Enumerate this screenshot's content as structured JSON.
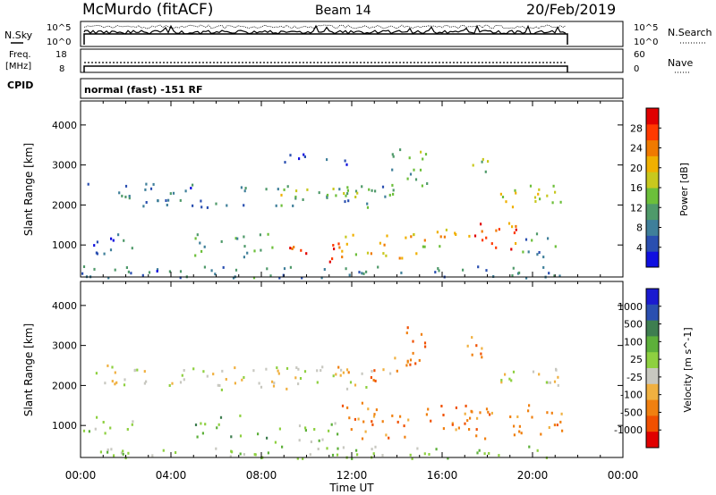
{
  "header": {
    "station": "McMurdo (fitACF)",
    "beam": "Beam 14",
    "date": "20/Feb/2019"
  },
  "strip_nsky": {
    "label": "N.Sky",
    "y_ticks": [
      "10^5",
      "10^0"
    ],
    "right_ticks": [
      "10^5",
      "10^0"
    ],
    "right_label": "N.Search"
  },
  "strip_freq": {
    "label_line1": "Freq.",
    "label_line2": "[MHz]",
    "left_ticks": [
      "18",
      "8"
    ],
    "right_ticks": [
      "60",
      "0"
    ],
    "right_label": "Nave"
  },
  "cpid": {
    "label": "CPID",
    "text": "normal (fast) -151 RF"
  },
  "colors": {
    "power_scale": [
      "#1010e0",
      "#2a4fb0",
      "#3f7f9a",
      "#4f9a6a",
      "#6cbf3a",
      "#c8c81e",
      "#f0b000",
      "#f07a00",
      "#ff3a00",
      "#e00000"
    ],
    "velocity_scale": [
      "#1a1ad0",
      "#2a4fb0",
      "#3e7e50",
      "#5db03a",
      "#8ed040",
      "#c8c8c0",
      "#f0b040",
      "#f08010",
      "#f05000",
      "#e00000"
    ]
  },
  "chart_data": [
    {
      "type": "heatmap",
      "name": "power",
      "ylabel": "Slant Range [km]",
      "ylim": [
        200,
        4600
      ],
      "y_ticks": [
        1000,
        2000,
        3000,
        4000
      ],
      "colorbar_label": "Power [dB]",
      "colorbar_ticks": [
        4,
        8,
        12,
        16,
        20,
        24,
        28
      ],
      "colorbar_range": [
        0,
        32
      ],
      "scatter_bands": [
        {
          "t0": 0.3,
          "t1": 5.3,
          "r0": 2000,
          "r1": 2600,
          "value": 8
        },
        {
          "t0": 5.3,
          "t1": 13.7,
          "r0": 1900,
          "r1": 2500,
          "value": 10
        },
        {
          "t0": 8.5,
          "t1": 13.0,
          "r0": 2200,
          "r1": 2500,
          "value": 16
        },
        {
          "t0": 13.7,
          "t1": 15.3,
          "r0": 2300,
          "r1": 3600,
          "value": 12
        },
        {
          "t0": 18.5,
          "t1": 21.3,
          "r0": 1900,
          "r1": 2600,
          "value": 18
        },
        {
          "t0": 0.0,
          "t1": 2.3,
          "r0": 800,
          "r1": 1300,
          "value": 6
        },
        {
          "t0": 5.0,
          "t1": 8.5,
          "r0": 700,
          "r1": 1300,
          "value": 12
        },
        {
          "t0": 8.5,
          "t1": 11.5,
          "r0": 600,
          "r1": 1100,
          "value": 28
        },
        {
          "t0": 11.5,
          "t1": 16.3,
          "r0": 700,
          "r1": 1500,
          "value": 20
        },
        {
          "t0": 16.3,
          "t1": 19.5,
          "r0": 900,
          "r1": 1600,
          "value": 26
        },
        {
          "t0": 19.5,
          "t1": 21.3,
          "r0": 700,
          "r1": 1400,
          "value": 10
        },
        {
          "t0": 0.0,
          "t1": 21.3,
          "r0": 200,
          "r1": 500,
          "value": 8
        },
        {
          "t0": 9.0,
          "t1": 12.0,
          "r0": 3000,
          "r1": 3300,
          "value": 6
        },
        {
          "t0": 17.0,
          "t1": 18.0,
          "r0": 2700,
          "r1": 3200,
          "value": 14
        }
      ]
    },
    {
      "type": "heatmap",
      "name": "velocity",
      "ylabel": "Slant Range [km]",
      "xlabel": "Time UT",
      "ylim": [
        200,
        4600
      ],
      "y_ticks": [
        1000,
        2000,
        3000,
        4000
      ],
      "x_ticks": [
        "00:00",
        "04:00",
        "08:00",
        "12:00",
        "16:00",
        "20:00",
        "00:00"
      ],
      "xlim_hours": [
        0,
        24
      ],
      "colorbar_label": "Velocity [m s^-1]",
      "colorbar_ticks": [
        "1000",
        "500",
        "100",
        "25",
        "-25",
        "-100",
        "-500",
        "-1000"
      ],
      "scatter_bands": [
        {
          "t0": 0.5,
          "t1": 5.3,
          "r0": 2000,
          "r1": 2600,
          "value": 5
        },
        {
          "t0": 5.3,
          "t1": 13.7,
          "r0": 1900,
          "r1": 2500,
          "value": 5
        },
        {
          "t0": 11.0,
          "t1": 13.5,
          "r0": 2100,
          "r1": 2500,
          "value": 7
        },
        {
          "t0": 13.7,
          "t1": 15.3,
          "r0": 2300,
          "r1": 3600,
          "value": 7
        },
        {
          "t0": 18.5,
          "t1": 21.3,
          "r0": 1900,
          "r1": 2600,
          "value": 5
        },
        {
          "t0": 0.0,
          "t1": 2.3,
          "r0": 800,
          "r1": 1300,
          "value": 4
        },
        {
          "t0": 5.0,
          "t1": 8.3,
          "r0": 700,
          "r1": 1300,
          "value": 3
        },
        {
          "t0": 8.3,
          "t1": 11.5,
          "r0": 600,
          "r1": 1100,
          "value": 4
        },
        {
          "t0": 11.5,
          "t1": 21.3,
          "r0": 700,
          "r1": 1600,
          "value": 7
        },
        {
          "t0": 0.0,
          "t1": 21.3,
          "r0": 200,
          "r1": 500,
          "value": 4
        },
        {
          "t0": 17.0,
          "t1": 18.0,
          "r0": 2700,
          "r1": 3300,
          "value": 7
        }
      ]
    }
  ]
}
